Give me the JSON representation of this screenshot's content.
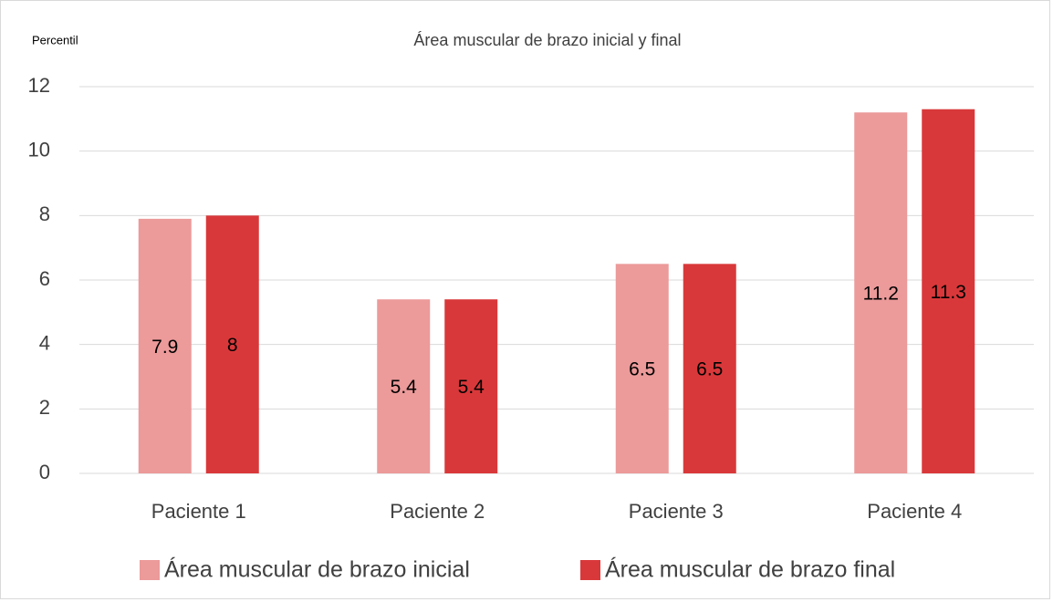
{
  "chart_data": {
    "type": "bar",
    "title": "Área muscular de brazo inicial y final",
    "y_label": "Percentil",
    "categories": [
      "Paciente 1",
      "Paciente 2",
      "Paciente 3",
      "Paciente 4"
    ],
    "series": [
      {
        "name": "Área muscular de brazo inicial",
        "color": "#ec9a9a",
        "values": [
          7.9,
          5.4,
          6.5,
          11.2
        ]
      },
      {
        "name": "Área muscular de brazo final",
        "color": "#d9383a",
        "values": [
          8,
          5.4,
          6.5,
          11.3
        ]
      }
    ],
    "ylim": [
      0,
      12
    ],
    "yticks": [
      0,
      2,
      4,
      6,
      8,
      10,
      12
    ],
    "grid": true,
    "legend": "bottom"
  }
}
